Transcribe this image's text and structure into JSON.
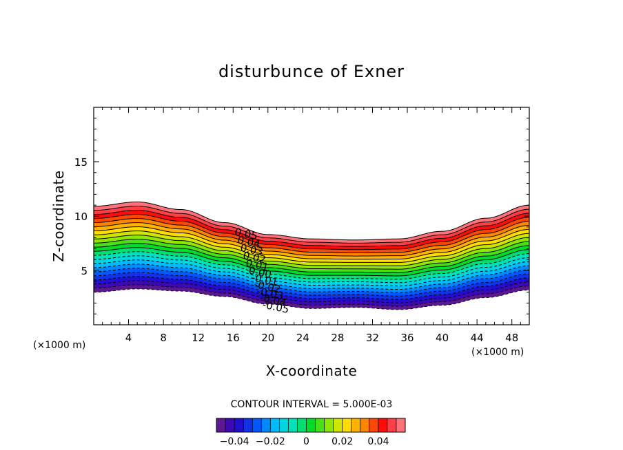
{
  "chart_data": {
    "type": "contour",
    "title": "disturbunce of Exner",
    "xlabel": "X-coordinate",
    "ylabel": "Z-coordinate",
    "x_unit_left": "(×1000 m)",
    "x_unit_right": "(×1000 m)",
    "xlim": [
      0,
      50
    ],
    "ylim": [
      0,
      20
    ],
    "x_ticks": [
      4,
      8,
      12,
      16,
      20,
      24,
      28,
      32,
      36,
      40,
      44,
      48
    ],
    "y_ticks": [
      5,
      10,
      15
    ],
    "contour_interval_text": "CONTOUR INTERVAL = 5.000E-03",
    "contour_interval": 0.005,
    "value_range": [
      -0.05,
      0.055
    ],
    "terrain_top_z": [
      [
        0,
        10.9
      ],
      [
        5,
        11.3
      ],
      [
        10,
        10.6
      ],
      [
        15,
        9.4
      ],
      [
        20,
        8.3
      ],
      [
        25,
        7.9
      ],
      [
        30,
        7.8
      ],
      [
        35,
        7.9
      ],
      [
        40,
        8.6
      ],
      [
        45,
        9.8
      ],
      [
        50,
        11.0
      ]
    ],
    "terrain_bottom_z": [
      [
        0,
        3.0
      ],
      [
        5,
        3.3
      ],
      [
        10,
        3.1
      ],
      [
        15,
        2.6
      ],
      [
        20,
        1.9
      ],
      [
        25,
        1.5
      ],
      [
        30,
        1.6
      ],
      [
        35,
        1.4
      ],
      [
        40,
        1.8
      ],
      [
        45,
        2.5
      ],
      [
        50,
        3.2
      ]
    ],
    "contour_labels": [
      "0.05",
      "0.04",
      "0.03",
      "0.02",
      "0.01",
      "0.00",
      "-0.01",
      "-0.02",
      "-0.03",
      "-0.04",
      "-0.05"
    ],
    "colorbar": {
      "tick_values": [
        -0.04,
        -0.02,
        0,
        0.02,
        0.04
      ],
      "tick_labels": [
        "-0.04",
        "-0.02",
        "0",
        "0.02",
        "0.04"
      ]
    }
  }
}
